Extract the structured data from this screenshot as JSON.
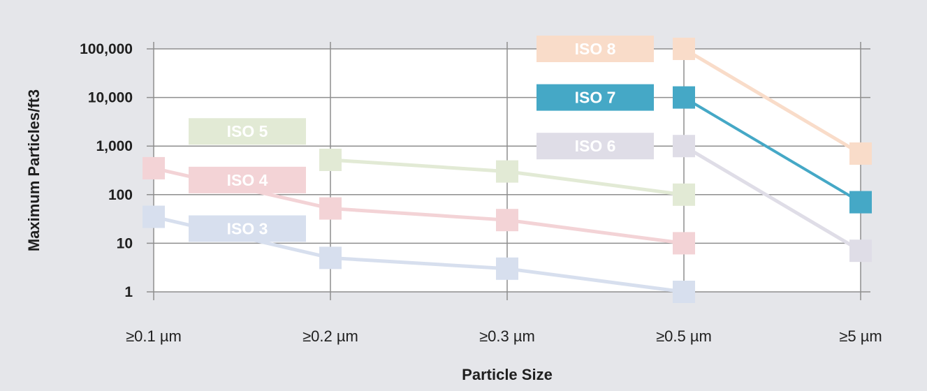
{
  "chart_data": {
    "type": "line",
    "title": "",
    "xlabel": "Particle Size",
    "ylabel": "Maximum Particles/ft3",
    "y_scale": "log",
    "ylim": [
      1,
      100000
    ],
    "grid": true,
    "categories": [
      "≥0.1 µm",
      "≥0.2 µm",
      "≥0.3 µm",
      "≥0.5 µm",
      "≥5 µm"
    ],
    "y_ticks": [
      {
        "value": 1,
        "label": "1"
      },
      {
        "value": 10,
        "label": "10"
      },
      {
        "value": 100,
        "label": "100"
      },
      {
        "value": 1000,
        "label": "1,000"
      },
      {
        "value": 10000,
        "label": "10,000"
      },
      {
        "value": 100000,
        "label": "100,000"
      }
    ],
    "series": [
      {
        "name": "ISO 3",
        "values": [
          35,
          5,
          3,
          1,
          null
        ],
        "color": "#d7dfee",
        "highlighted": false,
        "label_anchor": {
          "category": 0.55,
          "value": 20
        }
      },
      {
        "name": "ISO 4",
        "values": [
          350,
          52,
          30,
          10,
          null
        ],
        "color": "#f3d3d6",
        "highlighted": false,
        "label_anchor": {
          "category": 0.55,
          "value": 200
        }
      },
      {
        "name": "ISO 5",
        "values": [
          null,
          520,
          300,
          100,
          null
        ],
        "color": "#e2ead5",
        "highlighted": false,
        "label_anchor": {
          "category": 0.55,
          "value": 2000
        }
      },
      {
        "name": "ISO 6",
        "values": [
          null,
          null,
          null,
          1000,
          7
        ],
        "color": "#dfdde7",
        "highlighted": false,
        "label_anchor": {
          "category": 2.8,
          "value": 1000
        }
      },
      {
        "name": "ISO 8",
        "values": [
          null,
          null,
          null,
          100000,
          700
        ],
        "color": "#f9dcc9",
        "highlighted": false,
        "label_anchor": {
          "category": 2.8,
          "value": 100000
        }
      },
      {
        "name": "ISO 7",
        "values": [
          null,
          null,
          null,
          10000,
          70
        ],
        "color": "#45a8c6",
        "highlighted": true,
        "label_anchor": {
          "category": 2.8,
          "value": 10000
        }
      }
    ]
  }
}
